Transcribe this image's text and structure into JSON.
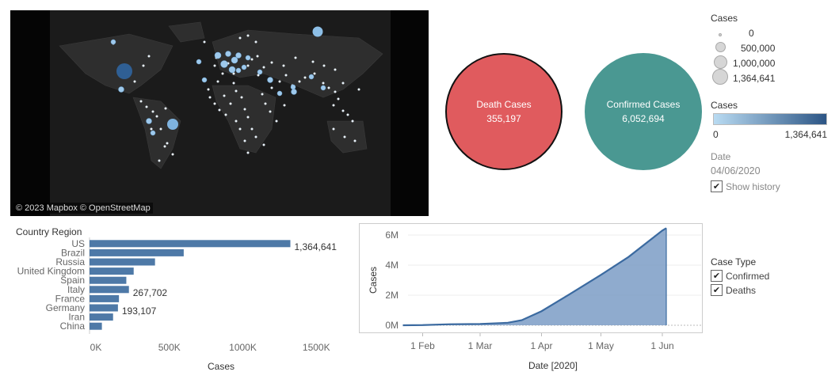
{
  "map": {
    "credit": "© 2023 Mapbox © OpenStreetMap"
  },
  "kpis": {
    "death": {
      "label": "Death Cases",
      "value": "355,197",
      "color": "#e05b5e"
    },
    "confirmed": {
      "label": "Confirmed Cases",
      "value": "6,052,694",
      "color": "#4a9892"
    }
  },
  "legend": {
    "size_title": "Cases",
    "size_items": [
      "0",
      "500,000",
      "1,000,000",
      "1,364,641"
    ],
    "color_title": "Cases",
    "color_min": "0",
    "color_max": "1,364,641",
    "color_start": "#b9dbf2",
    "color_end": "#2c5585",
    "date_label": "Date",
    "date_value": "04/06/2020",
    "show_history": "Show history",
    "case_type_title": "Case Type",
    "case_types": [
      "Confirmed",
      "Deaths"
    ]
  },
  "chart_data": [
    {
      "type": "bar",
      "title": "",
      "ylabel": "Country Region",
      "xlabel": "Cases",
      "categories": [
        "US",
        "Brazil",
        "Russia",
        "United Kingdom",
        "Spain",
        "Italy",
        "France",
        "Germany",
        "Iran",
        "China"
      ],
      "values": [
        1364641,
        640000,
        445000,
        300000,
        250000,
        267702,
        200000,
        193107,
        160000,
        84000
      ],
      "data_labels": {
        "US": "1,364,641",
        "Italy": "267,702",
        "Germany": "193,107"
      },
      "x_ticks": [
        "0K",
        "500K",
        "1000K",
        "1500K"
      ],
      "xlim": [
        0,
        1750000
      ],
      "color": "#4e79a7"
    },
    {
      "type": "area",
      "title": "",
      "ylabel": "Cases",
      "xlabel": "Date [2020]",
      "x_ticks": [
        "1 Feb",
        "1 Mar",
        "1 Apr",
        "1 May",
        "1 Jun"
      ],
      "y_ticks": [
        "0M",
        "2M",
        "4M",
        "6M"
      ],
      "ylim": [
        0,
        6500000
      ],
      "series": [
        {
          "values": [
            [
              "2020-01-22",
              555
            ],
            [
              "2020-02-01",
              12000
            ],
            [
              "2020-02-15",
              69000
            ],
            [
              "2020-03-01",
              88000
            ],
            [
              "2020-03-15",
              167000
            ],
            [
              "2020-03-22",
              337000
            ],
            [
              "2020-04-01",
              935000
            ],
            [
              "2020-04-15",
              2050000
            ],
            [
              "2020-05-01",
              3350000
            ],
            [
              "2020-05-15",
              4550000
            ],
            [
              "2020-06-01",
              6300000
            ],
            [
              "2020-06-03",
              6460000
            ]
          ]
        }
      ],
      "color": "#4e79a7"
    }
  ]
}
